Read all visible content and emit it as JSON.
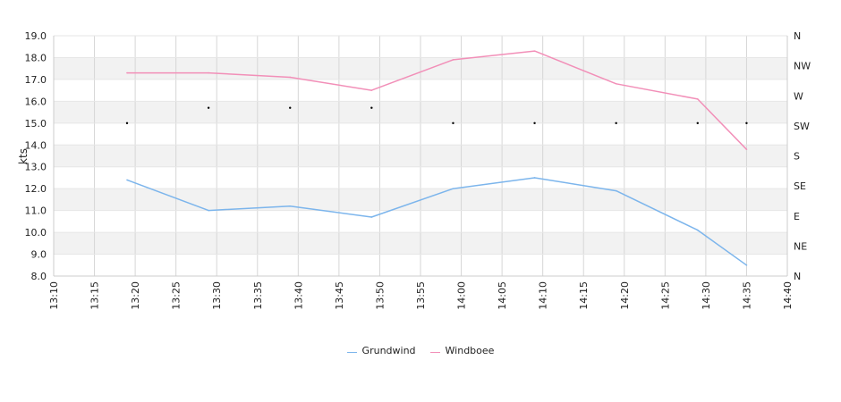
{
  "chart_data": {
    "type": "line",
    "ylabel": "kts",
    "ylim": [
      8.0,
      19.0
    ],
    "yticks": [
      "19.0",
      "18.0",
      "17.0",
      "16.0",
      "15.0",
      "14.0",
      "13.0",
      "12.0",
      "11.0",
      "10.0",
      "9.0",
      "8.0"
    ],
    "xticks": [
      "13:10",
      "13:15",
      "13:20",
      "13:25",
      "13:30",
      "13:35",
      "13:40",
      "13:45",
      "13:50",
      "13:55",
      "14:00",
      "14:05",
      "14:10",
      "14:15",
      "14:20",
      "14:25",
      "14:30",
      "14:35",
      "14:40"
    ],
    "xlim": [
      "13:10",
      "14:40"
    ],
    "direction_axis": [
      "N",
      "NW",
      "W",
      "SW",
      "S",
      "SE",
      "E",
      "NE",
      "N"
    ],
    "series": [
      {
        "name": "Grundwind",
        "color": "#7cb5ec",
        "points": [
          [
            "13:19",
            12.4
          ],
          [
            "13:29",
            11.0
          ],
          [
            "13:39",
            11.2
          ],
          [
            "13:49",
            10.7
          ],
          [
            "13:59",
            12.0
          ],
          [
            "14:09",
            12.5
          ],
          [
            "14:19",
            11.9
          ],
          [
            "14:29",
            10.1
          ],
          [
            "14:35",
            8.5
          ]
        ]
      },
      {
        "name": "Windboee",
        "color": "#f28fb8",
        "points": [
          [
            "13:19",
            17.3
          ],
          [
            "13:29",
            17.3
          ],
          [
            "13:39",
            17.1
          ],
          [
            "13:49",
            16.5
          ],
          [
            "13:59",
            17.9
          ],
          [
            "14:09",
            18.3
          ],
          [
            "14:19",
            16.8
          ],
          [
            "14:29",
            16.1
          ],
          [
            "14:35",
            13.8
          ]
        ]
      }
    ],
    "direction_points": [
      [
        "13:19",
        "SW"
      ],
      [
        "13:29",
        "SW"
      ],
      [
        "13:39",
        "SW"
      ],
      [
        "13:49",
        "SW"
      ],
      [
        "13:59",
        "SW"
      ],
      [
        "14:09",
        "SW"
      ],
      [
        "14:19",
        "SW"
      ],
      [
        "14:29",
        "SW"
      ],
      [
        "14:35",
        "SW"
      ]
    ],
    "direction_values": [
      [
        "13:19",
        15.0
      ],
      [
        "13:29",
        15.7
      ],
      [
        "13:39",
        15.7
      ],
      [
        "13:49",
        15.7
      ],
      [
        "13:59",
        15.0
      ],
      [
        "14:09",
        15.0
      ],
      [
        "14:19",
        15.0
      ],
      [
        "14:29",
        15.0
      ],
      [
        "14:35",
        15.0
      ]
    ]
  }
}
